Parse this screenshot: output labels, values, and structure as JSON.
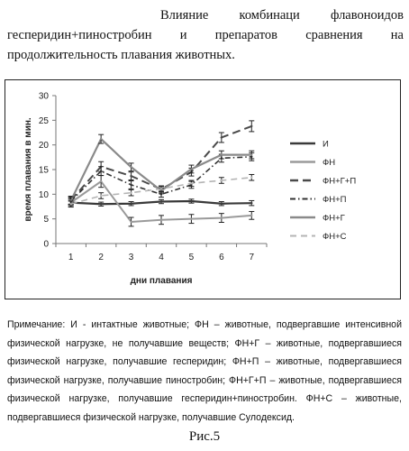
{
  "heading": {
    "line1": "Влияние комбинаци флавоноидов",
    "line2": "гесперидин+пиностробин и препаратов сравнения на",
    "line3": "продолжительность плавания животных."
  },
  "chart_data": {
    "type": "line",
    "xlabel": "дни плавания",
    "ylabel": "время плавания в мин.",
    "x": [
      1,
      2,
      3,
      4,
      5,
      6,
      7
    ],
    "ylim": [
      0,
      30
    ],
    "yticks": [
      0,
      5,
      10,
      15,
      20,
      25,
      30
    ],
    "legend_position": "right",
    "grid": false,
    "series": [
      {
        "name": "И",
        "color": "#3a3a3a",
        "width": 2.2,
        "dash": "",
        "values": [
          8.3,
          8.0,
          8.1,
          8.5,
          8.6,
          8.1,
          8.2
        ],
        "errors": [
          0.5,
          0.4,
          0.4,
          0.4,
          0.4,
          0.4,
          0.5
        ]
      },
      {
        "name": "ФН",
        "color": "#9a9a9a",
        "width": 2.0,
        "dash": "",
        "values": [
          8.3,
          12.6,
          4.4,
          4.8,
          5.0,
          5.2,
          5.7
        ],
        "errors": [
          0.8,
          1.2,
          0.9,
          0.9,
          0.9,
          0.9,
          0.8
        ]
      },
      {
        "name": "ФН+Г+П",
        "color": "#4a4a4a",
        "width": 2.0,
        "dash": "9,5",
        "values": [
          8.8,
          15.6,
          13.7,
          11.0,
          14.5,
          21.5,
          23.8
        ],
        "errors": [
          0.8,
          1.0,
          0.8,
          0.6,
          0.8,
          1.0,
          1.1
        ]
      },
      {
        "name": "ФН+П",
        "color": "#333333",
        "width": 1.6,
        "dash": "6,3,1.5,3",
        "values": [
          8.6,
          14.7,
          11.9,
          10.0,
          11.9,
          17.3,
          17.6
        ],
        "errors": [
          0.7,
          0.9,
          0.8,
          0.6,
          0.7,
          0.8,
          0.8
        ]
      },
      {
        "name": "ФН+Г",
        "color": "#8a8a8a",
        "width": 2.2,
        "dash": "",
        "values": [
          8.7,
          21.2,
          15.5,
          10.7,
          15.1,
          18.0,
          18.0
        ],
        "errors": [
          0.8,
          0.9,
          0.8,
          0.6,
          0.8,
          0.8,
          0.8
        ]
      },
      {
        "name": "ФН+С",
        "color": "#b4b4b4",
        "width": 1.6,
        "dash": "7,5",
        "values": [
          8.0,
          9.7,
          10.3,
          11.1,
          12.2,
          12.8,
          13.4
        ],
        "errors": [
          0.6,
          0.6,
          0.6,
          0.6,
          0.6,
          0.6,
          0.6
        ]
      }
    ]
  },
  "note": "Примечание: И - интактные животные; ФН – животные, подвергавшие интенсивной физической нагрузке, не получавшие веществ; ФН+Г – животные, подвергавшиеся физической нагрузке, получавшие гесперидин; ФН+П – животные, подвергавшиеся физической нагрузке, получавшие пиностробин; ФН+Г+П – животные, подвергавшиеся физической нагрузке, получавшие гесперидин+пиностробин. ФН+С – животные, подвергавшиеся физической нагрузке, получавшие Сулодексид.",
  "figure_caption": "Рис.5"
}
